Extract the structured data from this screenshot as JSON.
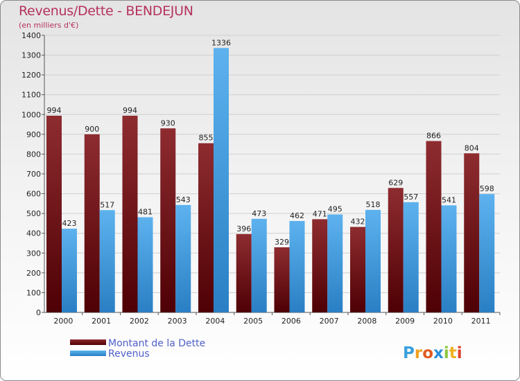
{
  "chart_data": {
    "type": "bar",
    "title": "Revenus/Dette - BENDEJUN",
    "subtitle": "(en milliers d'€)",
    "categories": [
      "2000",
      "2001",
      "2002",
      "2003",
      "2004",
      "2005",
      "2006",
      "2007",
      "2008",
      "2009",
      "2010",
      "2011"
    ],
    "series": [
      {
        "name": "Montant de la Dette",
        "color": "#7a1a1e",
        "values": [
          994,
          900,
          994,
          930,
          855,
          396,
          329,
          471,
          432,
          629,
          866,
          804
        ]
      },
      {
        "name": "Revenus",
        "color": "#3b9be0",
        "values": [
          423,
          517,
          481,
          543,
          1336,
          473,
          462,
          495,
          518,
          557,
          541,
          598
        ]
      }
    ],
    "ylim": [
      0,
      1400
    ],
    "yticks": [
      0,
      100,
      200,
      300,
      400,
      500,
      600,
      700,
      800,
      900,
      1000,
      1100,
      1200,
      1300,
      1400
    ],
    "grid": true,
    "legend": "bottom-left"
  },
  "branding": {
    "letters": [
      {
        "ch": "P",
        "color": "#3aa0dc"
      },
      {
        "ch": "r",
        "color": "#f0a020"
      },
      {
        "ch": "o",
        "color": "#e05a20"
      },
      {
        "ch": "x",
        "color": "#2a8fd8"
      },
      {
        "ch": "i",
        "color": "#8cc63e"
      },
      {
        "ch": "t",
        "color": "#f0b020"
      },
      {
        "ch": "i",
        "color": "#e0402a"
      }
    ]
  }
}
